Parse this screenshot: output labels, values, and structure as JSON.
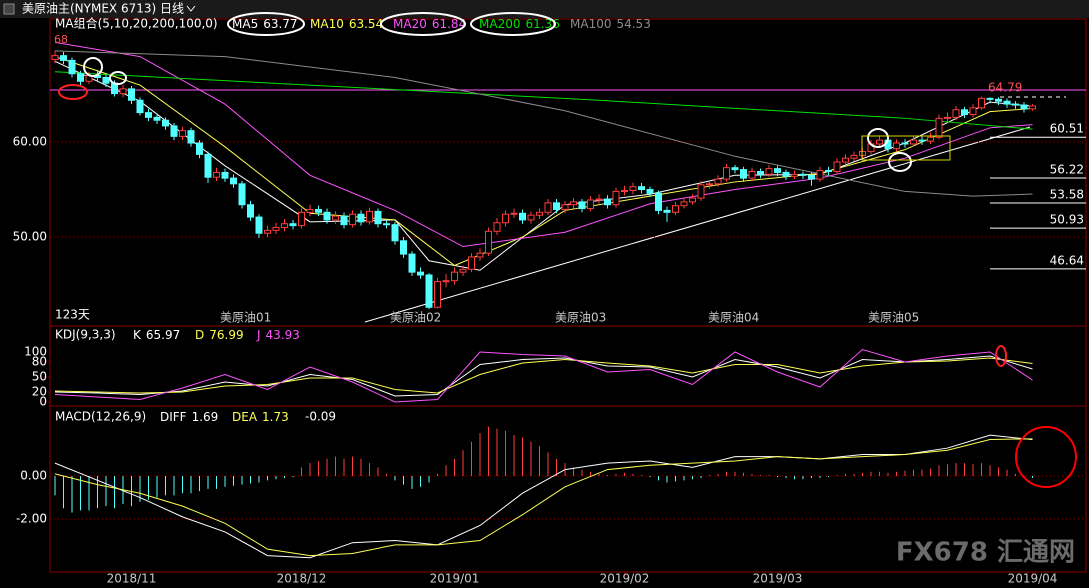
{
  "header": {
    "title": "美原油主(NYMEX 6713)",
    "period": "日线",
    "watermark": "FX678 汇通网"
  },
  "chart_data": [
    {
      "type": "candlestick",
      "ma_label": "MA组合(5,10,20,200,100,0)",
      "days_label": "123天",
      "contracts": [
        "美原油01",
        "美原油02",
        "美原油03",
        "美原油04",
        "美原油05"
      ],
      "start_label": 68,
      "high_label": 64.79,
      "levels": [
        60.51,
        56.22,
        53.58,
        50.93,
        46.64
      ],
      "up_color": "#ff3c3c",
      "down_color": "#54ffff",
      "ylim": [
        41.05,
        71.8
      ],
      "yticks": [
        {
          "value": 50,
          "label": "50.00"
        },
        {
          "value": 60,
          "label": "60.00"
        }
      ],
      "grid": true,
      "xlim": [
        0,
        115
      ],
      "xticks": [
        {
          "value": 9,
          "label": "2018/11"
        },
        {
          "value": 29,
          "label": "2018/12"
        },
        {
          "value": 47,
          "label": "2019/01"
        },
        {
          "value": 67,
          "label": "2019/02"
        },
        {
          "value": 85,
          "label": "2019/03"
        },
        {
          "value": 115,
          "label": "2019/04"
        }
      ],
      "open": [
        68.7,
        69.1,
        68.6,
        67.2,
        66.4,
        67.0,
        66.8,
        66.2,
        65.1,
        65.6,
        64.4,
        63.1,
        62.6,
        62.3,
        61.7,
        60.6,
        61.2,
        59.9,
        58.7,
        56.3,
        56.8,
        56.2,
        55.6,
        53.4,
        52.1,
        50.4,
        50.7,
        51.0,
        51.4,
        51.2,
        52.6,
        52.9,
        52.6,
        51.8,
        52.2,
        51.3,
        52.4,
        51.6,
        52.7,
        51.4,
        51.3,
        49.6,
        48.2,
        46.3,
        46.0,
        42.6,
        45.3,
        45.4,
        46.3,
        46.6,
        47.9,
        48.3,
        50.6,
        51.5,
        52.4,
        52.5,
        51.8,
        52.3,
        52.6,
        53.6,
        52.9,
        53.4,
        53.7,
        53.0,
        53.9,
        54.0,
        53.4,
        54.8,
        54.9,
        55.3,
        55.0,
        54.6,
        52.8,
        52.6,
        53.3,
        53.7,
        54.1,
        55.5,
        55.6,
        56.1,
        57.3,
        57.1,
        56.2,
        56.9,
        56.6,
        57.2,
        56.8,
        56.4,
        56.6,
        56.5,
        56.1,
        57.0,
        56.9,
        57.9,
        58.3,
        58.6,
        59.0,
        59.8,
        60.2,
        59.3,
        59.9,
        59.8,
        60.2,
        60.1,
        60.5,
        62.5,
        62.6,
        63.4,
        62.9,
        63.6,
        64.6,
        64.5,
        64.3,
        64.0,
        63.9,
        63.5
      ],
      "high": [
        69.6,
        69.5,
        68.9,
        67.5,
        67.4,
        67.6,
        67.1,
        66.5,
        66.0,
        65.9,
        64.7,
        63.5,
        63.0,
        62.6,
        62.0,
        61.6,
        61.5,
        60.2,
        59.0,
        57.3,
        57.2,
        56.6,
        55.9,
        53.8,
        52.4,
        51.2,
        51.5,
        51.9,
        51.8,
        53.0,
        53.4,
        53.3,
        53.0,
        52.7,
        52.6,
        52.8,
        52.8,
        53.1,
        53.0,
        51.8,
        51.6,
        50.0,
        48.5,
        46.8,
        46.2,
        45.7,
        46.1,
        46.8,
        47.0,
        48.3,
        48.8,
        51.0,
        52.0,
        52.8,
        53.0,
        52.9,
        52.7,
        53.0,
        54.0,
        54.0,
        53.8,
        54.1,
        54.0,
        54.3,
        54.5,
        54.4,
        55.2,
        55.4,
        55.7,
        55.7,
        55.3,
        54.9,
        53.2,
        53.7,
        54.1,
        54.5,
        55.9,
        56.0,
        56.5,
        57.7,
        57.6,
        57.4,
        57.3,
        57.2,
        57.6,
        57.5,
        57.1,
        57.0,
        56.9,
        56.8,
        57.4,
        57.4,
        58.3,
        58.7,
        59.0,
        59.4,
        60.2,
        60.7,
        60.5,
        60.3,
        60.3,
        60.6,
        60.6,
        61.0,
        62.9,
        63.1,
        63.8,
        63.7,
        64.0,
        64.79,
        64.7,
        64.7,
        64.6,
        64.3,
        64.2,
        64.0
      ],
      "low": [
        68.3,
        68.2,
        66.8,
        66.0,
        66.1,
        66.4,
        65.8,
        64.8,
        64.7,
        64.0,
        62.8,
        62.2,
        61.9,
        61.3,
        60.2,
        60.2,
        59.5,
        58.3,
        55.7,
        55.9,
        55.8,
        55.2,
        53.0,
        51.7,
        49.9,
        50.0,
        50.3,
        50.6,
        50.8,
        50.9,
        52.2,
        52.2,
        51.4,
        51.4,
        50.9,
        51.0,
        51.2,
        51.3,
        51.0,
        50.9,
        49.2,
        47.8,
        45.9,
        45.6,
        42.4,
        42.5,
        44.7,
        45.0,
        45.9,
        46.3,
        47.5,
        48.0,
        50.2,
        51.1,
        52.0,
        51.4,
        51.4,
        51.9,
        52.3,
        52.5,
        52.5,
        53.0,
        52.6,
        52.7,
        53.5,
        53.0,
        53.1,
        54.4,
        54.5,
        54.6,
        54.2,
        52.4,
        51.6,
        52.3,
        53.0,
        53.4,
        53.8,
        55.1,
        55.3,
        55.8,
        56.7,
        55.8,
        55.9,
        56.2,
        56.3,
        56.4,
        56.0,
        56.1,
        56.1,
        55.4,
        55.8,
        56.5,
        56.6,
        57.6,
        58.0,
        58.3,
        58.7,
        59.4,
        58.9,
        59.0,
        59.4,
        59.5,
        59.7,
        59.8,
        60.3,
        62.1,
        62.3,
        62.5,
        62.6,
        63.4,
        64.1,
        63.9,
        63.6,
        63.5,
        63.1,
        63.3
      ],
      "close": [
        69.1,
        68.6,
        67.2,
        66.4,
        67.0,
        66.8,
        66.2,
        65.1,
        65.6,
        64.4,
        63.1,
        62.6,
        62.3,
        61.7,
        60.6,
        61.2,
        59.9,
        58.7,
        56.3,
        56.8,
        56.2,
        55.6,
        53.4,
        52.1,
        50.4,
        50.7,
        51.0,
        51.4,
        51.2,
        52.6,
        52.9,
        52.6,
        51.8,
        52.2,
        51.3,
        52.4,
        51.6,
        52.7,
        51.4,
        51.3,
        49.6,
        48.2,
        46.3,
        46.0,
        42.6,
        45.3,
        45.4,
        46.3,
        46.6,
        47.9,
        48.3,
        50.6,
        51.5,
        52.4,
        52.5,
        51.8,
        52.3,
        52.6,
        53.6,
        52.9,
        53.4,
        53.7,
        53.0,
        53.9,
        54.0,
        53.4,
        54.8,
        54.9,
        55.3,
        55.0,
        54.6,
        52.8,
        52.6,
        53.3,
        53.7,
        54.1,
        55.5,
        55.6,
        56.1,
        57.3,
        57.1,
        56.2,
        56.9,
        56.6,
        57.2,
        56.8,
        56.4,
        56.6,
        56.5,
        56.1,
        57.0,
        56.9,
        57.9,
        58.3,
        58.6,
        59.0,
        59.8,
        60.2,
        59.3,
        59.9,
        59.8,
        60.2,
        60.1,
        60.5,
        62.5,
        62.6,
        63.4,
        62.9,
        63.6,
        64.6,
        64.5,
        64.3,
        64.0,
        63.9,
        63.5,
        63.8
      ],
      "series": [
        {
          "name": "MA5",
          "color": "#ffffff",
          "x": [
            0,
            10,
            20,
            30,
            40,
            44,
            50,
            60,
            70,
            80,
            90,
            100,
            110,
            115
          ],
          "values": [
            68.5,
            64.3,
            57.5,
            51.6,
            51.8,
            47.5,
            46.5,
            53.4,
            54.5,
            56.5,
            56.6,
            59.9,
            64.2,
            63.77
          ]
        },
        {
          "name": "MA10",
          "color": "#ffff54",
          "x": [
            0,
            10,
            20,
            30,
            40,
            47,
            55,
            60,
            70,
            80,
            90,
            100,
            110,
            115
          ],
          "values": [
            69,
            66,
            59.5,
            52.5,
            51.8,
            47,
            50,
            52.8,
            54.3,
            55.8,
            56.7,
            59.2,
            63.2,
            63.54
          ]
        },
        {
          "name": "MA20",
          "color": "#ff54ff",
          "x": [
            0,
            10,
            20,
            30,
            40,
            48,
            60,
            70,
            80,
            90,
            100,
            110,
            115
          ],
          "values": [
            70.5,
            69,
            64,
            56.5,
            52.8,
            49,
            50.5,
            53.5,
            55,
            56.2,
            58.3,
            61.5,
            61.84
          ]
        },
        {
          "name": "MA200",
          "color": "#00e000",
          "x": [
            0,
            64,
            100,
            115
          ],
          "values": [
            67.4,
            64.4,
            62.5,
            61.36
          ]
        },
        {
          "name": "MA100",
          "color": "#8c8c8c",
          "x": [
            0,
            20,
            40,
            60,
            80,
            100,
            108,
            115
          ],
          "values": [
            69.6,
            69,
            66.8,
            63.3,
            58.5,
            54.8,
            54.3,
            54.53
          ]
        }
      ]
    },
    {
      "type": "line",
      "title": "KDJ(9,3,3)",
      "ylim": [
        -6,
        118
      ],
      "yticks": [
        0,
        20,
        50,
        80,
        100
      ],
      "series": [
        {
          "name": "K",
          "color": "#ffffff",
          "x": [
            0,
            5,
            10,
            15,
            20,
            25,
            30,
            35,
            40,
            45,
            50,
            55,
            60,
            65,
            70,
            75,
            80,
            85,
            90,
            95,
            100,
            105,
            110,
            115
          ],
          "values": [
            20,
            18,
            15,
            22,
            40,
            32,
            55,
            45,
            12,
            15,
            75,
            85,
            88,
            72,
            70,
            50,
            85,
            70,
            48,
            85,
            80,
            85,
            92,
            65.97
          ]
        },
        {
          "name": "D",
          "color": "#ffff54",
          "x": [
            0,
            5,
            10,
            15,
            20,
            25,
            30,
            35,
            40,
            45,
            50,
            55,
            60,
            65,
            70,
            75,
            80,
            85,
            90,
            95,
            100,
            105,
            110,
            115
          ],
          "values": [
            22,
            20,
            18,
            20,
            32,
            35,
            48,
            48,
            25,
            18,
            55,
            78,
            85,
            78,
            72,
            58,
            75,
            75,
            58,
            72,
            80,
            82,
            88,
            76.99
          ]
        },
        {
          "name": "J",
          "color": "#ff54ff",
          "x": [
            0,
            5,
            10,
            15,
            20,
            25,
            30,
            35,
            40,
            45,
            50,
            55,
            60,
            65,
            70,
            75,
            80,
            85,
            90,
            95,
            100,
            105,
            110,
            115
          ],
          "values": [
            15,
            10,
            5,
            28,
            55,
            25,
            70,
            40,
            0,
            5,
            100,
            95,
            92,
            60,
            65,
            35,
            100,
            60,
            30,
            105,
            80,
            92,
            100,
            43.93
          ]
        }
      ]
    },
    {
      "type": "macd",
      "title": "MACD(12,26,9)",
      "ylim": [
        -4.37,
        3.07
      ],
      "yticks": [
        {
          "value": -2,
          "label": "-2.00"
        },
        {
          "value": 0,
          "label": "0.00"
        }
      ],
      "histogram": [
        -0.9,
        -1.5,
        -1.7,
        -1.6,
        -1.6,
        -1.5,
        -1.4,
        -1.5,
        -1.3,
        -1.4,
        -1.2,
        -1.1,
        -1.0,
        -0.9,
        -0.9,
        -0.8,
        -0.8,
        -0.7,
        -0.6,
        -0.6,
        -0.5,
        -0.45,
        -0.4,
        -0.35,
        -0.3,
        -0.2,
        -0.15,
        -0.1,
        -0.05,
        0.4,
        0.6,
        0.7,
        0.8,
        0.9,
        0.8,
        0.9,
        0.8,
        0.6,
        0.4,
        0.1,
        -0.2,
        -0.4,
        -0.6,
        -0.5,
        -0.3,
        0.1,
        0.5,
        0.8,
        1.2,
        1.6,
        2.0,
        2.3,
        2.2,
        2.1,
        1.9,
        1.8,
        1.6,
        1.4,
        1.1,
        0.8,
        0.6,
        0.4,
        0.3,
        0.2,
        0.1,
        0.05,
        0.1,
        0.15,
        0.1,
        0.05,
        -0.05,
        -0.2,
        -0.3,
        -0.25,
        -0.2,
        -0.15,
        -0.1,
        0.05,
        0.1,
        0.2,
        0.2,
        0.15,
        0.1,
        0.05,
        0.05,
        -0.05,
        -0.1,
        -0.15,
        -0.15,
        -0.1,
        -0.1,
        -0.05,
        0.05,
        0.1,
        0.1,
        0.15,
        0.2,
        0.2,
        0.15,
        0.2,
        0.25,
        0.3,
        0.3,
        0.35,
        0.5,
        0.55,
        0.6,
        0.6,
        0.55,
        0.6,
        0.5,
        0.4,
        0.3,
        0.1,
        0.02,
        -0.09
      ],
      "series": [
        {
          "name": "DIFF",
          "color": "#ffffff",
          "x": [
            0,
            5,
            10,
            15,
            20,
            25,
            30,
            35,
            40,
            45,
            50,
            55,
            60,
            65,
            70,
            75,
            80,
            85,
            90,
            95,
            100,
            105,
            110,
            115
          ],
          "values": [
            0.6,
            -0.2,
            -1.0,
            -1.9,
            -2.6,
            -3.7,
            -3.8,
            -3.1,
            -3.0,
            -3.2,
            -2.3,
            -0.8,
            0.3,
            0.6,
            0.7,
            0.4,
            0.9,
            0.9,
            0.8,
            1.0,
            1.0,
            1.3,
            1.9,
            1.69
          ]
        },
        {
          "name": "DEA",
          "color": "#ffff54",
          "x": [
            0,
            5,
            10,
            15,
            20,
            25,
            30,
            35,
            40,
            45,
            50,
            55,
            60,
            65,
            70,
            75,
            80,
            85,
            90,
            95,
            100,
            105,
            110,
            115
          ],
          "values": [
            0.1,
            -0.4,
            -0.8,
            -1.4,
            -2.2,
            -3.4,
            -3.7,
            -3.6,
            -3.2,
            -3.2,
            -3.0,
            -1.8,
            -0.5,
            0.3,
            0.5,
            0.6,
            0.7,
            0.9,
            0.8,
            0.9,
            1.0,
            1.2,
            1.7,
            1.73
          ]
        }
      ]
    }
  ]
}
